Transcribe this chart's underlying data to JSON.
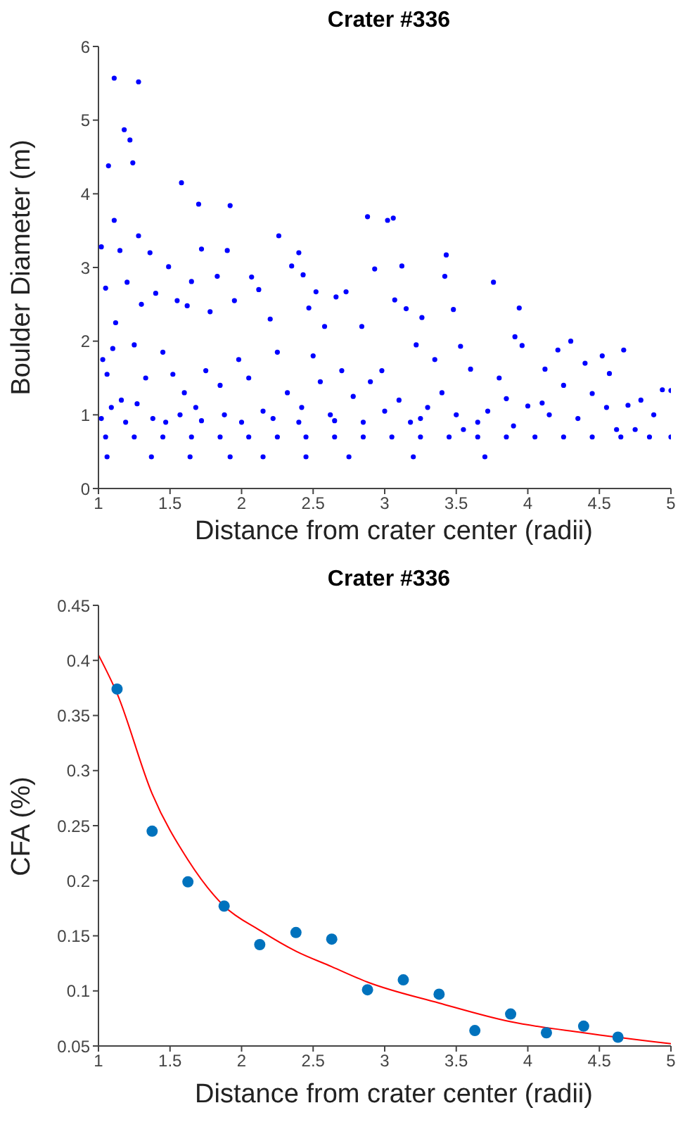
{
  "chart_data": [
    {
      "type": "scatter",
      "title": "Crater #336",
      "xlabel": "Distance from crater center (radii)",
      "ylabel": "Boulder Diameter (m)",
      "xlim": [
        1,
        5
      ],
      "xticks": [
        1,
        1.5,
        2,
        2.5,
        3,
        3.5,
        4,
        4.5,
        5
      ],
      "ylim": [
        0,
        6
      ],
      "yticks": [
        0,
        1,
        2,
        3,
        4,
        5,
        6
      ],
      "grid": false,
      "marker": "circle",
      "series": [
        {
          "color": "#0000ff",
          "x": [
            1.11,
            1.28,
            1.18,
            1.22,
            1.24,
            1.07,
            1.58,
            1.11,
            1.7,
            1.92,
            2.88,
            3.02,
            3.06,
            1.28,
            2.26,
            1.02,
            1.72,
            1.9,
            2.4,
            3.43,
            3.12,
            1.49,
            2.93,
            3.42,
            3.76,
            2.52,
            2.73,
            3.07,
            3.48,
            3.94,
            1.65,
            1.83,
            2.07,
            2.43,
            2.66,
            3.15,
            3.26,
            3.91,
            4.3,
            4.67,
            4.21,
            4.52,
            3.53,
            3.96,
            4.4,
            4.57,
            4.94,
            5.0,
            4.79,
            4.12,
            4.1,
            4.7,
            4.88,
            4.45,
            1.36,
            1.15,
            1.05,
            1.12,
            1.2,
            1.3,
            1.4,
            1.55,
            1.62,
            1.78,
            1.95,
            2.12,
            2.2,
            2.35,
            2.47,
            2.58,
            2.84,
            2.98,
            3.22,
            3.35,
            3.6,
            3.8,
            3.85,
            4.0,
            4.15,
            4.25,
            4.35,
            4.55,
            4.62,
            4.75,
            1.03,
            1.06,
            1.1,
            1.16,
            1.25,
            1.33,
            1.45,
            1.52,
            1.6,
            1.68,
            1.75,
            1.85,
            1.98,
            2.05,
            2.15,
            2.25,
            2.32,
            2.42,
            2.5,
            2.55,
            2.62,
            2.7,
            2.78,
            2.9,
            3.0,
            3.1,
            3.18,
            3.3,
            3.4,
            3.5,
            3.65,
            3.72,
            3.9,
            1.02,
            1.09,
            1.19,
            1.27,
            1.38,
            1.47,
            1.57,
            1.72,
            1.88,
            2.0,
            2.22,
            2.4,
            2.65,
            2.85,
            3.25,
            3.55,
            1.06,
            1.37,
            1.64,
            1.92,
            2.15,
            2.45,
            2.75,
            3.2,
            3.7,
            1.05,
            1.25,
            1.45,
            1.65,
            1.85,
            2.05,
            2.25,
            2.45,
            2.65,
            2.85,
            3.05,
            3.25,
            3.45,
            3.65,
            3.85,
            4.05,
            4.25,
            4.45,
            4.65,
            4.85,
            5.0
          ],
          "values": [
            5.57,
            5.52,
            4.87,
            4.73,
            4.42,
            4.38,
            4.15,
            3.64,
            3.86,
            3.84,
            3.69,
            3.64,
            3.67,
            3.43,
            3.43,
            3.28,
            3.25,
            3.23,
            3.2,
            3.17,
            3.02,
            3.01,
            2.98,
            2.88,
            2.8,
            2.67,
            2.67,
            2.56,
            2.43,
            2.45,
            2.81,
            2.88,
            2.87,
            2.9,
            2.6,
            2.44,
            2.32,
            2.06,
            2.0,
            1.88,
            1.88,
            1.8,
            1.93,
            1.94,
            1.7,
            1.56,
            1.34,
            1.33,
            1.2,
            1.62,
            1.16,
            1.13,
            1.0,
            1.29,
            3.2,
            3.23,
            2.72,
            2.25,
            2.8,
            2.5,
            2.65,
            2.55,
            2.48,
            2.4,
            2.55,
            2.7,
            2.3,
            3.02,
            2.45,
            2.2,
            2.2,
            1.6,
            1.95,
            1.75,
            1.62,
            1.5,
            1.22,
            1.12,
            1.0,
            1.4,
            0.95,
            1.1,
            0.8,
            0.8,
            1.75,
            1.55,
            1.9,
            1.2,
            1.95,
            1.5,
            1.85,
            1.55,
            1.3,
            1.1,
            1.6,
            1.4,
            1.75,
            1.5,
            1.05,
            1.85,
            1.3,
            1.1,
            1.8,
            1.45,
            1.0,
            1.6,
            1.25,
            1.45,
            1.05,
            1.2,
            0.9,
            1.1,
            1.3,
            1.0,
            0.9,
            1.05,
            0.85,
            0.95,
            1.1,
            0.9,
            1.15,
            0.95,
            0.9,
            1.0,
            0.92,
            1.0,
            0.9,
            0.95,
            0.9,
            0.92,
            0.9,
            0.95,
            0.8,
            0.43,
            0.43,
            0.43,
            0.43,
            0.43,
            0.43,
            0.43,
            0.43,
            0.43,
            0.7,
            0.7,
            0.7,
            0.7,
            0.7,
            0.7,
            0.7,
            0.7,
            0.7,
            0.7,
            0.7,
            0.7,
            0.7,
            0.7,
            0.7,
            0.7,
            0.7,
            0.7,
            0.7,
            0.7,
            0.7
          ]
        }
      ]
    },
    {
      "type": "scatter",
      "title": "Crater #336",
      "xlabel": "Distance from crater center (radii)",
      "ylabel": "CFA (%)",
      "xlim": [
        1,
        5
      ],
      "xticks": [
        1,
        1.5,
        2,
        2.5,
        3,
        3.5,
        4,
        4.5,
        5
      ],
      "ylim": [
        0.05,
        0.45
      ],
      "yticks": [
        0.05,
        0.1,
        0.15,
        0.2,
        0.25,
        0.3,
        0.35,
        0.4,
        0.45
      ],
      "grid": false,
      "marker": "circle",
      "series": [
        {
          "color": "#0072bd",
          "x": [
            1.13,
            1.375,
            1.625,
            1.878,
            2.127,
            2.38,
            2.63,
            2.88,
            3.13,
            3.38,
            3.63,
            3.88,
            4.13,
            4.39,
            4.63
          ],
          "values": [
            0.374,
            0.245,
            0.199,
            0.177,
            0.142,
            0.153,
            0.147,
            0.101,
            0.11,
            0.097,
            0.064,
            0.079,
            0.062,
            0.068,
            0.058
          ]
        },
        {
          "type": "line",
          "color": "#ff0000",
          "marker": "none",
          "x": [
            1,
            1.13,
            1.375,
            1.625,
            1.878,
            2.127,
            2.38,
            2.63,
            2.88,
            3.38,
            3.88,
            4.39,
            5
          ],
          "values": [
            0.405,
            0.37,
            0.279,
            0.219,
            0.177,
            0.155,
            0.136,
            0.122,
            0.108,
            0.089,
            0.072,
            0.062,
            0.052
          ]
        }
      ]
    }
  ]
}
